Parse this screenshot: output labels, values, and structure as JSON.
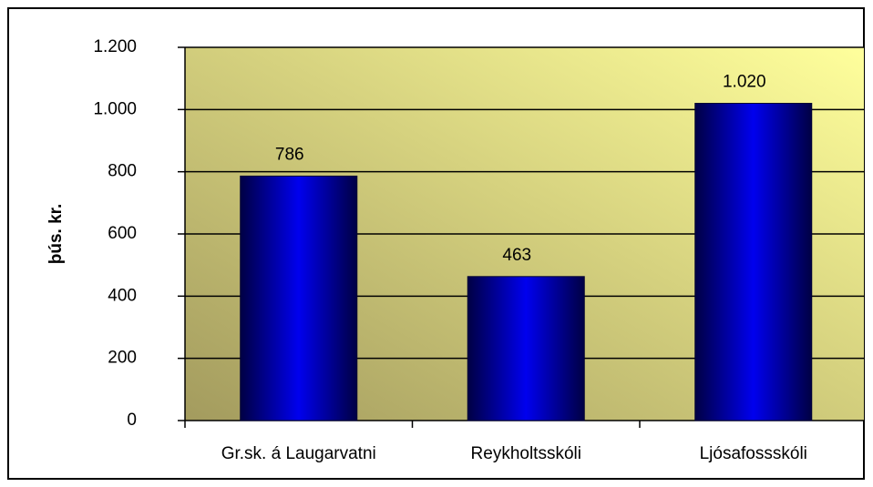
{
  "chart_data": {
    "type": "bar",
    "y_label": "þús. kr.",
    "categories": [
      "Gr.sk. á Laugarvatni",
      "Reykholtsskóli",
      "Ljósafossskóli"
    ],
    "values": [
      786,
      463,
      1020
    ],
    "value_labels": [
      "786",
      "463",
      "1.020"
    ],
    "color": "#0000ee",
    "ylim": [
      0,
      1200
    ],
    "yticks": [
      0,
      200,
      400,
      600,
      800,
      {
        "value": 1000,
        "label": "1.000"
      },
      {
        "value": 1200,
        "label": "1.200"
      }
    ],
    "grid": true
  }
}
